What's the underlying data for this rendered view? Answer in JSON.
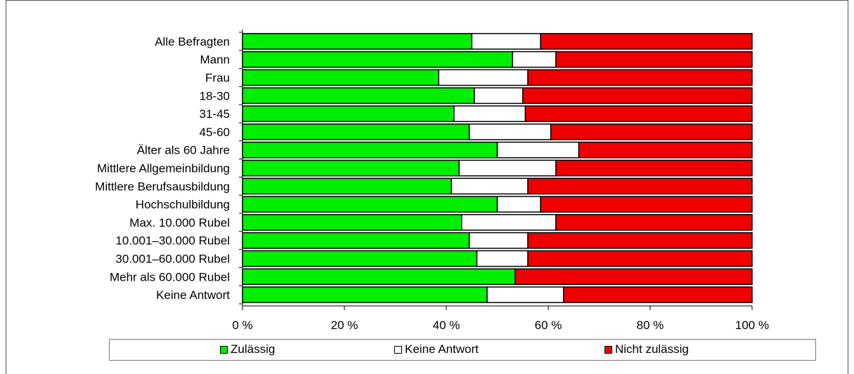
{
  "chart_data": {
    "type": "bar",
    "orientation": "horizontal",
    "stacked": true,
    "title": "",
    "xlabel": "",
    "ylabel": "",
    "xlim": [
      0,
      100
    ],
    "x_ticks": [
      "0 %",
      "20 %",
      "40 %",
      "60 %",
      "80 %",
      "100 %"
    ],
    "categories": [
      "Alle Befragten",
      "Mann",
      "Frau",
      "18-30",
      "31-45",
      "45-60",
      "Älter als 60 Jahre",
      "Mittlere Allgemeinbildung",
      "Mittlere Berufsausbildung",
      "Hochschulbildung",
      "Max. 10.000 Rubel",
      "10.001–30.000 Rubel",
      "30.001–60.000 Rubel",
      "Mehr als 60.000 Rubel",
      "Keine Antwort"
    ],
    "series": [
      {
        "name": "Zulässig",
        "color": "#00ee00",
        "values": [
          45,
          53,
          38.5,
          45.5,
          41.5,
          44.5,
          50,
          42.5,
          41,
          50,
          43,
          44.5,
          46,
          53.5,
          48
        ]
      },
      {
        "name": "Keine Antwort",
        "color": "#ffffff",
        "values": [
          13.5,
          8.5,
          17.5,
          9.5,
          14,
          16,
          16,
          19,
          15,
          8.5,
          18.5,
          11.5,
          10,
          0,
          15
        ]
      },
      {
        "name": "Nicht zulässig",
        "color": "#ee0000",
        "values": [
          41.5,
          38.5,
          44,
          45,
          44.5,
          39.5,
          34,
          38.5,
          44,
          41.5,
          38.5,
          44,
          44,
          46.5,
          37
        ]
      }
    ],
    "grid": false,
    "legend_position": "bottom"
  }
}
